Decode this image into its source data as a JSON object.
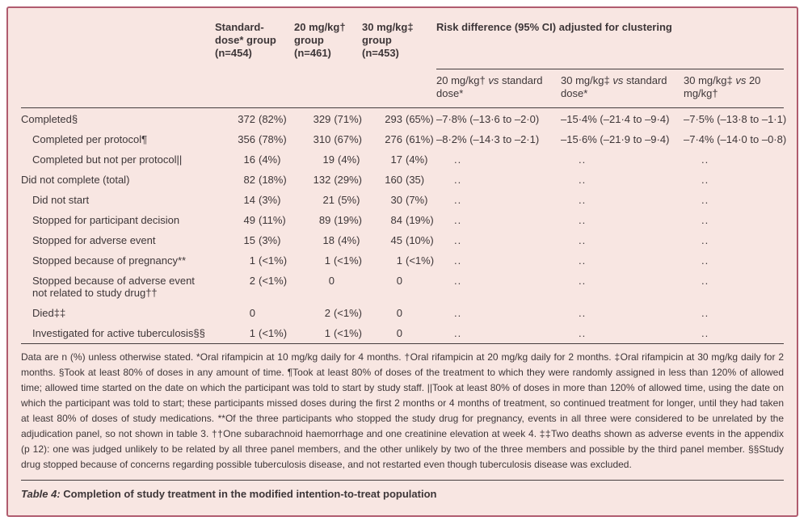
{
  "colors": {
    "panel_bg": "#f8e6e2",
    "border": "#b05c6f",
    "text": "#3d3638",
    "rule": "#453d3e"
  },
  "table": {
    "header": {
      "groups": [
        "Standard-\ndose* group\n(n=454)",
        "20 mg/kg†\ngroup\n(n=461)",
        "30 mg/kg‡\ngroup\n(n=453)"
      ],
      "risk_title": "Risk difference (95% CI) adjusted for clustering",
      "risk_subs": [
        {
          "pre": "20 mg/kg† ",
          "vs": "vs",
          "post": " standard dose*"
        },
        {
          "pre": "30 mg/kg‡ ",
          "vs": "vs",
          "post": " standard dose*"
        },
        {
          "pre": "30 mg/kg‡ ",
          "vs": "vs",
          "post": " 20 mg/kg†"
        }
      ]
    },
    "no_value": "..",
    "rows": [
      {
        "label": "Completed§",
        "indent": false,
        "c1": {
          "n": "372",
          "pct": "(82%)"
        },
        "c2": {
          "n": "329",
          "pct": "(71%)"
        },
        "c3": {
          "n": "293",
          "pct": "(65%)"
        },
        "r1": "–7·8% (–13·6 to –2·0)",
        "r2": "–15·4% (–21·4 to –9·4)",
        "r3": "–7·5% (–13·8 to –1·1)"
      },
      {
        "label": "Completed per protocol¶",
        "indent": true,
        "c1": {
          "n": "356",
          "pct": "(78%)"
        },
        "c2": {
          "n": "310",
          "pct": "(67%)"
        },
        "c3": {
          "n": "276",
          "pct": "(61%)"
        },
        "r1": "–8·2% (–14·3 to –2·1)",
        "r2": "–15·6% (–21·9 to –9·4)",
        "r3": "–7·4% (–14·0 to –0·8)"
      },
      {
        "label": "Completed but not per protocol||",
        "indent": true,
        "c1": {
          "n": "16",
          "pct": "(4%)"
        },
        "c2": {
          "n": "19",
          "pct": "(4%)"
        },
        "c3": {
          "n": "17",
          "pct": "(4%)"
        },
        "r1": "..",
        "r2": "..",
        "r3": ".."
      },
      {
        "label": "Did not complete (total)",
        "indent": false,
        "c1": {
          "n": "82",
          "pct": "(18%)"
        },
        "c2": {
          "n": "132",
          "pct": "(29%)"
        },
        "c3": {
          "n": "160",
          "pct": "(35)"
        },
        "r1": "..",
        "r2": "..",
        "r3": ".."
      },
      {
        "label": "Did not start",
        "indent": true,
        "c1": {
          "n": "14",
          "pct": "(3%)"
        },
        "c2": {
          "n": "21",
          "pct": "(5%)"
        },
        "c3": {
          "n": "30",
          "pct": "(7%)"
        },
        "r1": "..",
        "r2": "..",
        "r3": ".."
      },
      {
        "label": "Stopped for participant decision",
        "indent": true,
        "c1": {
          "n": "49",
          "pct": "(11%)"
        },
        "c2": {
          "n": "89",
          "pct": "(19%)"
        },
        "c3": {
          "n": "84",
          "pct": "(19%)"
        },
        "r1": "..",
        "r2": "..",
        "r3": ".."
      },
      {
        "label": "Stopped for adverse event",
        "indent": true,
        "c1": {
          "n": "15",
          "pct": "(3%)"
        },
        "c2": {
          "n": "18",
          "pct": "(4%)"
        },
        "c3": {
          "n": "45",
          "pct": "(10%)"
        },
        "r1": "..",
        "r2": "..",
        "r3": ".."
      },
      {
        "label": "Stopped because of pregnancy**",
        "indent": true,
        "c1": {
          "n": "1",
          "pct": "(<1%)"
        },
        "c2": {
          "n": "1",
          "pct": "(<1%)"
        },
        "c3": {
          "n": "1",
          "pct": "(<1%)"
        },
        "r1": "..",
        "r2": "..",
        "r3": ".."
      },
      {
        "label": "Stopped because of adverse event\nnot related to study drug††",
        "indent": true,
        "c1": {
          "n": "2",
          "pct": "(<1%)"
        },
        "c2": {
          "n": "0",
          "pct": ""
        },
        "c3": {
          "n": "0",
          "pct": ""
        },
        "r1": "..",
        "r2": "..",
        "r3": ".."
      },
      {
        "label": "Died‡‡",
        "indent": true,
        "c1": {
          "n": "0",
          "pct": ""
        },
        "c2": {
          "n": "2",
          "pct": "(<1%)"
        },
        "c3": {
          "n": "0",
          "pct": ""
        },
        "r1": "..",
        "r2": "..",
        "r3": ".."
      },
      {
        "label": "Investigated for active tuberculosis§§",
        "indent": true,
        "c1": {
          "n": "1",
          "pct": "(<1%)"
        },
        "c2": {
          "n": "1",
          "pct": "(<1%)"
        },
        "c3": {
          "n": "0",
          "pct": ""
        },
        "r1": "..",
        "r2": "..",
        "r3": ".."
      }
    ]
  },
  "footnote": "Data are n (%) unless otherwise stated. *Oral rifampicin at 10 mg/kg daily for 4 months. †Oral rifampicin at 20 mg/kg daily for 2 months. ‡Oral rifampicin at 30 mg/kg daily for 2 months. §Took at least 80% of doses in any amount of time. ¶Took at least 80% of doses of the treatment to which they were randomly assigned in less than 120% of allowed time; allowed time started on the date on which the participant was told to start by study staff. ||Took at least 80% of doses in more than 120% of allowed time, using the date on which the participant was told to start; these participants missed doses during the first 2 months or 4 months of treatment, so continued treatment for longer, until they had taken at least 80% of doses of study medications. **Of the three participants who stopped the study drug for pregnancy, events in all three were considered to be unrelated by the adjudication panel, so not shown in table 3. ††One subarachnoid haemorrhage and one creatinine elevation at week 4. ‡‡Two deaths shown as adverse events in the appendix (p 12): one was judged unlikely to be related by all three panel members, and the other unlikely by two of the three members and possible by the third panel member. §§Study drug stopped because of concerns regarding possible tuberculosis disease, and not restarted even though tuberculosis disease was excluded.",
  "caption": {
    "prefix": "Table 4:",
    "text": " Completion of study treatment in the modified intention-to-treat population"
  }
}
